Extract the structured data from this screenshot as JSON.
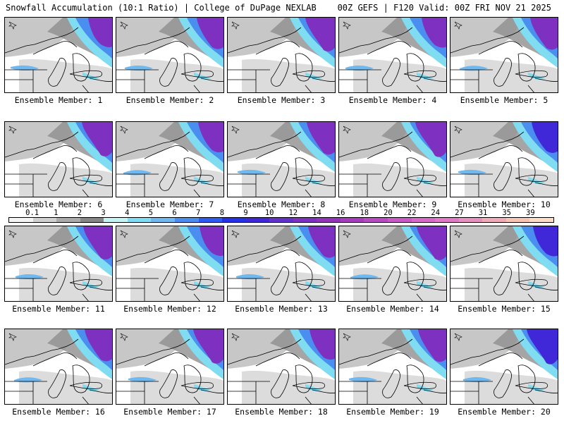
{
  "header": {
    "title": "Snowfall Accumulation (10:1 Ratio) | College of DuPage NEXLAB",
    "run": "00Z GEFS | F120 Valid: 00Z FRI NOV 21 2025"
  },
  "colorbar": {
    "ticks": [
      "0.1",
      "1",
      "2",
      "3",
      "4",
      "5",
      "6",
      "7",
      "8",
      "9",
      "10",
      "12",
      "14",
      "16",
      "18",
      "20",
      "22",
      "24",
      "27",
      "31",
      "35",
      "39"
    ],
    "colors": [
      "#f4f4f4",
      "#d0d0d0",
      "#ababab",
      "#878787",
      "#c4f4f4",
      "#80dcf0",
      "#70b8f0",
      "#4a8ef0",
      "#2c5cf0",
      "#2630e6",
      "#4028d8",
      "#6430cc",
      "#7e30c0",
      "#9434b8",
      "#a83cbc",
      "#b84ac4",
      "#c85ac8",
      "#d66ac8",
      "#e07ac4",
      "#e890c0",
      "#f0aab8",
      "#f6c4b4",
      "#fadcc8"
    ]
  },
  "members": [
    {
      "label": "Ensemble Member: 1"
    },
    {
      "label": "Ensemble Member: 2"
    },
    {
      "label": "Ensemble Member: 3"
    },
    {
      "label": "Ensemble Member: 4"
    },
    {
      "label": "Ensemble Member: 5"
    },
    {
      "label": "Ensemble Member: 6"
    },
    {
      "label": "Ensemble Member: 7"
    },
    {
      "label": "Ensemble Member: 8"
    },
    {
      "label": "Ensemble Member: 9"
    },
    {
      "label": "Ensemble Member: 10"
    },
    {
      "label": "Ensemble Member: 11"
    },
    {
      "label": "Ensemble Member: 12"
    },
    {
      "label": "Ensemble Member: 13"
    },
    {
      "label": "Ensemble Member: 14"
    },
    {
      "label": "Ensemble Member: 15"
    },
    {
      "label": "Ensemble Member: 16"
    },
    {
      "label": "Ensemble Member: 17"
    },
    {
      "label": "Ensemble Member: 18"
    },
    {
      "label": "Ensemble Member: 19"
    },
    {
      "label": "Ensemble Member: 20"
    }
  ]
}
